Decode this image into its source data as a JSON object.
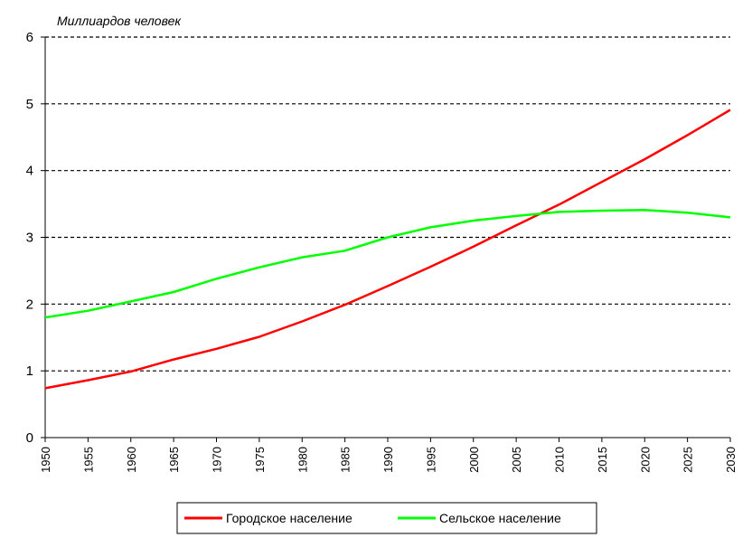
{
  "chart_data": {
    "type": "line",
    "unit_label": "Миллиардов человек",
    "x": [
      1950,
      1955,
      1960,
      1965,
      1970,
      1975,
      1980,
      1985,
      1990,
      1995,
      2000,
      2005,
      2010,
      2015,
      2020,
      2025,
      2030
    ],
    "x_tick_labels": [
      "1950",
      "1955",
      "1960",
      "1965",
      "1970",
      "1975",
      "1980",
      "1985",
      "1990",
      "1995",
      "2000",
      "2005",
      "2010",
      "2015",
      "2020",
      "2025",
      "2030"
    ],
    "y_tick_labels": [
      "0",
      "1",
      "2",
      "3",
      "4",
      "5",
      "6"
    ],
    "ylim": [
      0,
      6
    ],
    "xlim": [
      1950,
      2030
    ],
    "grid": "horizontal-dashed",
    "legend_position": "bottom",
    "series": [
      {
        "name": "Городское население",
        "color": "#ff0000",
        "values": [
          0.74,
          0.86,
          0.99,
          1.17,
          1.33,
          1.51,
          1.74,
          1.99,
          2.27,
          2.56,
          2.86,
          3.18,
          3.49,
          3.83,
          4.17,
          4.53,
          4.91
        ]
      },
      {
        "name": "Сельское население",
        "color": "#00ff00",
        "values": [
          1.8,
          1.9,
          2.04,
          2.18,
          2.38,
          2.55,
          2.7,
          2.8,
          3.0,
          3.15,
          3.25,
          3.32,
          3.38,
          3.4,
          3.41,
          3.37,
          3.3
        ]
      }
    ]
  }
}
